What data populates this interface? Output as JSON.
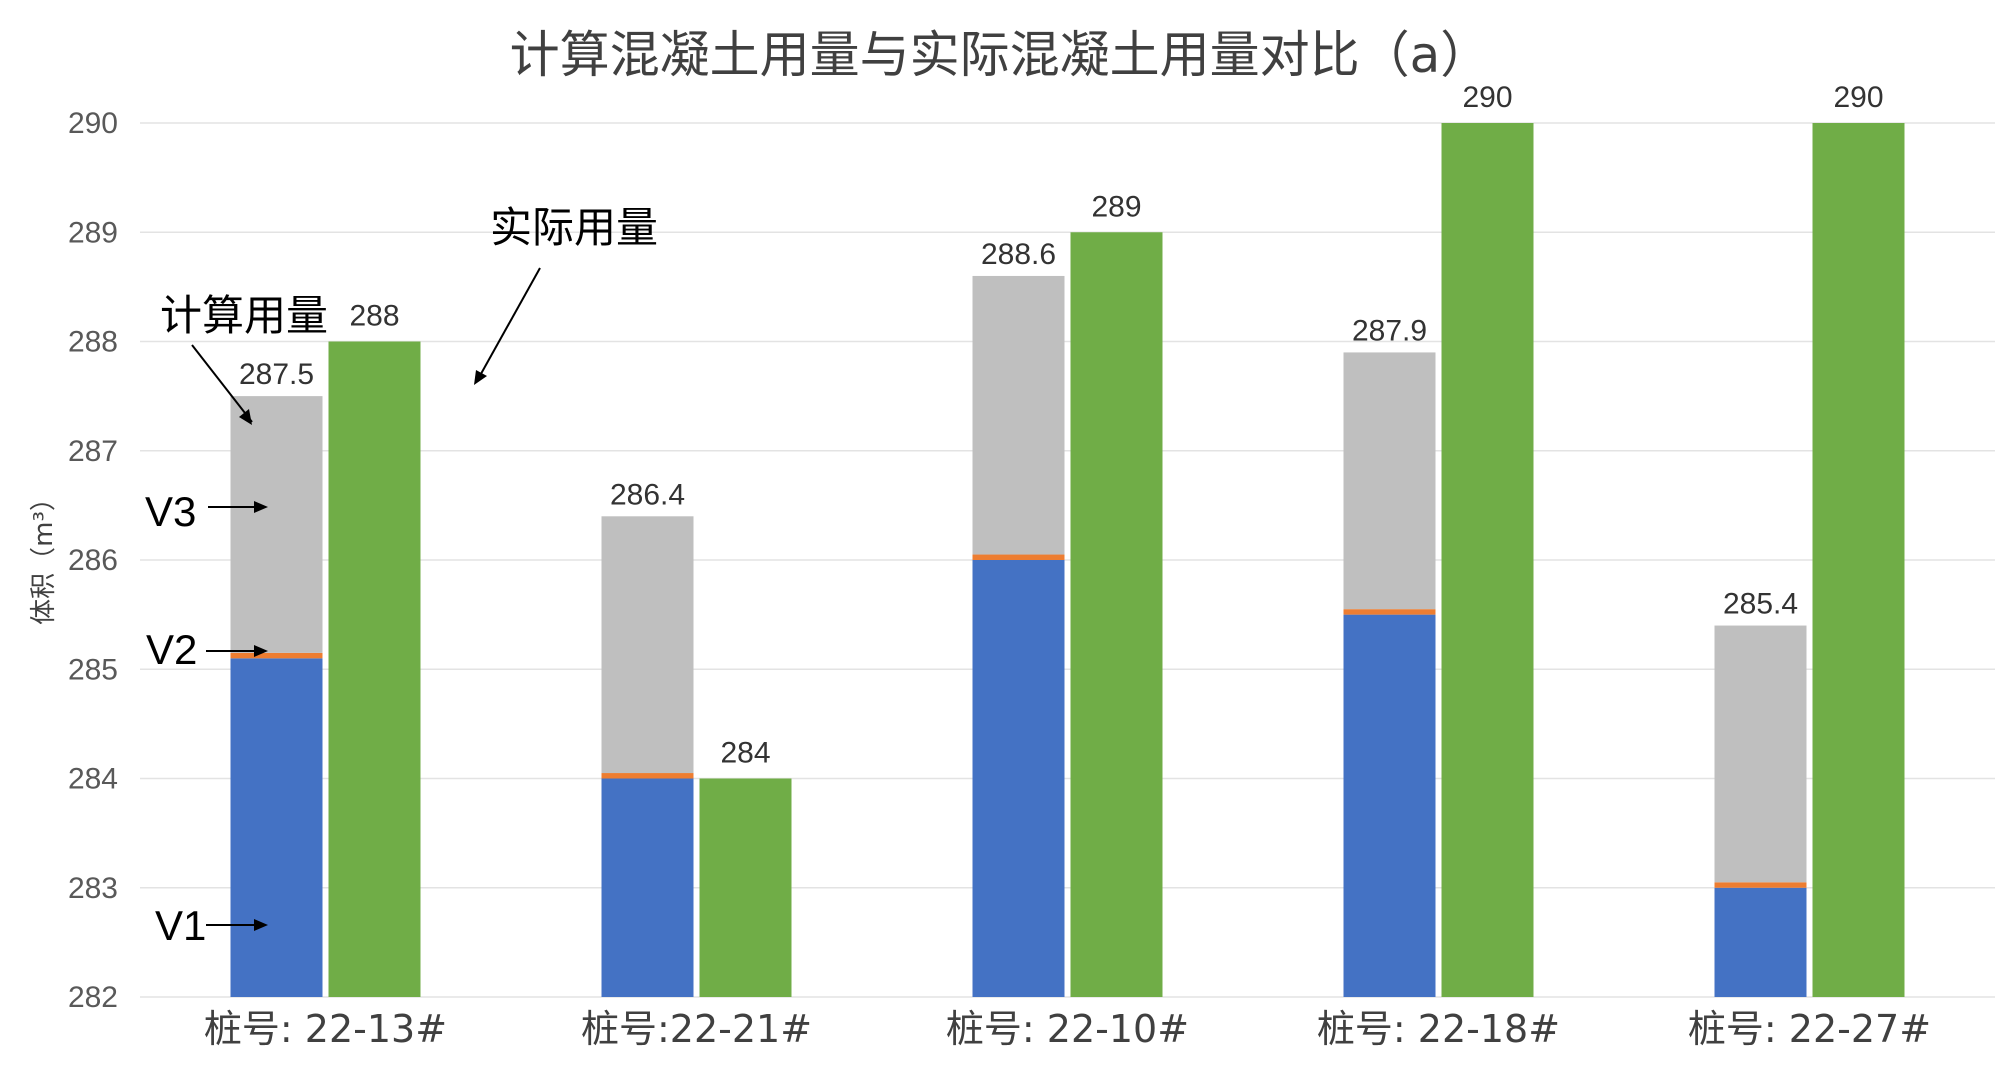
{
  "chart_data": {
    "type": "bar",
    "title": "计算混凝土用量与实际混凝土用量对比（a）",
    "ylabel": "体积（m³）",
    "ylim": [
      282,
      290
    ],
    "yticks": [
      282,
      283,
      284,
      285,
      286,
      287,
      288,
      289,
      290
    ],
    "grid": true,
    "categories": [
      "桩号: 22-13#",
      "桩号:22-21#",
      "桩号: 22-10#",
      "桩号: 22-18#",
      "桩号: 22-27#"
    ],
    "series": [
      {
        "name": "V1",
        "stack": "计算用量",
        "color": "#4472c4",
        "values": [
          285.1,
          284.0,
          286.0,
          285.5,
          283.0
        ]
      },
      {
        "name": "V2",
        "stack": "计算用量",
        "color": "#ed7d31",
        "values": [
          0.05,
          0.05,
          0.05,
          0.05,
          0.05
        ]
      },
      {
        "name": "V3",
        "stack": "计算用量",
        "color": "#bfbfbf",
        "values": [
          2.35,
          2.35,
          2.55,
          2.35,
          2.35
        ]
      },
      {
        "name": "实际用量",
        "stack": "实际用量",
        "color": "#70ad47",
        "values": [
          288,
          284,
          289,
          290,
          290
        ]
      }
    ],
    "data_labels": {
      "计算用量": [
        "287.5",
        "286.4",
        "288.6",
        "287.9",
        "285.4"
      ],
      "实际用量": [
        "288",
        "284",
        "289",
        "290",
        "290"
      ]
    },
    "annotations": {
      "computed": "计算用量",
      "actual": "实际用量",
      "v1": "V1",
      "v2": "V2",
      "v3": "V3"
    }
  }
}
